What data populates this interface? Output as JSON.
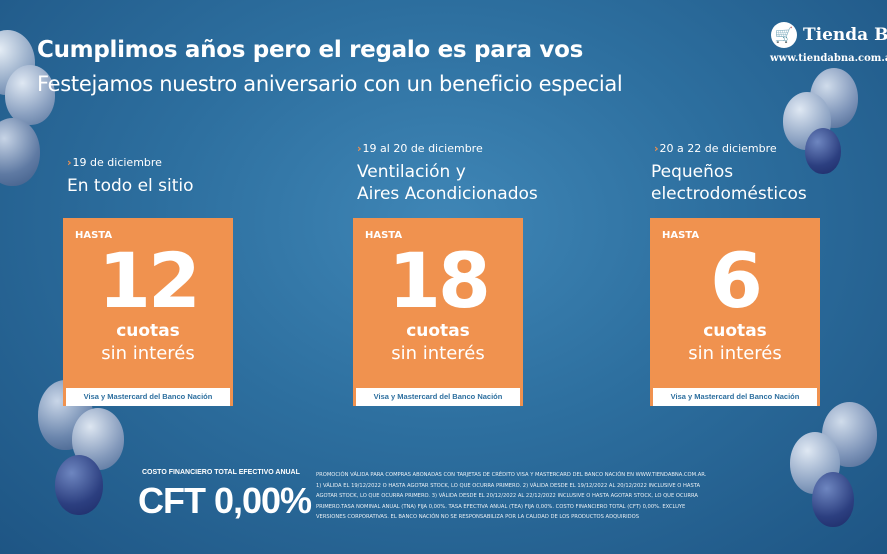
{
  "header": {
    "title": "Cumplimos años pero el regalo es para vos",
    "subtitle": "Festejamos nuestro aniversario con un beneficio especial"
  },
  "logo": {
    "name": "Tienda BNA",
    "url": "www.tiendabna.com.ar",
    "icon": "shopping-cart-icon"
  },
  "colors": {
    "background": "#2d6f9f",
    "card": "#f0924f",
    "accent": "#f0924f"
  },
  "promos": [
    {
      "date": "19 de diciembre",
      "category": [
        "En todo el sitio"
      ],
      "hasta": "HASTA",
      "number": "12",
      "cuotas": "cuotas",
      "sin_interes": "sin interés",
      "footer": "Visa y Mastercard del Banco Nación"
    },
    {
      "date": "19 al 20 de diciembre",
      "category": [
        "Ventilación y",
        "Aires Acondicionados"
      ],
      "hasta": "HASTA",
      "number": "18",
      "cuotas": "cuotas",
      "sin_interes": "sin interés",
      "footer": "Visa y Mastercard del Banco Nación"
    },
    {
      "date": "20 a 22 de diciembre",
      "category": [
        "Pequeños",
        "electrodomésticos"
      ],
      "hasta": "HASTA",
      "number": "6",
      "cuotas": "cuotas",
      "sin_interes": "sin interés",
      "footer": "Visa y Mastercard del Banco Nación"
    }
  ],
  "cft": {
    "label": "COSTO FINANCIERO TOTAL EFECTIVO ANUAL",
    "value": "CFT 0,00%"
  },
  "legal": [
    "PROMOCIÓN VÁLIDA PARA COMPRAS ABONADAS CON TARJETAS DE CRÉDITO VISA Y MASTERCARD DEL BANCO NACIÓN EN WWW.TIENDABNA.COM.AR.",
    "1) VÁLIDA EL 19/12/2022 O HASTA AGOTAR STOCK, LO QUE OCURRA PRIMERO. 2) VÁLIDA DESDE EL 19/12/2022 AL 20/12/2022 INCLUSIVE O HASTA",
    "AGOTAR STOCK, LO QUE OCURRA PRIMERO. 3) VÁLIDA DESDE EL 20/12/2022 AL 22/12/2022 INCLUSIVE O HASTA AGOTAR STOCK, LO QUE OCURRA",
    "PRIMERO.TASA NOMINAL ANUAL (TNA) FIJA 0,00%. TASA EFECTIVA ANUAL (TEA) FIJA 0,00%. COSTO FINANCIERO TOTAL (CFT) 0,00%. EXCLUYE",
    "VERSIONES CORPORATIVAS. EL BANCO NACIÓN NO SE RESPONSABILIZA POR LA CALIDAD DE LOS PRODUCTOS ADQUIRIDOS"
  ]
}
